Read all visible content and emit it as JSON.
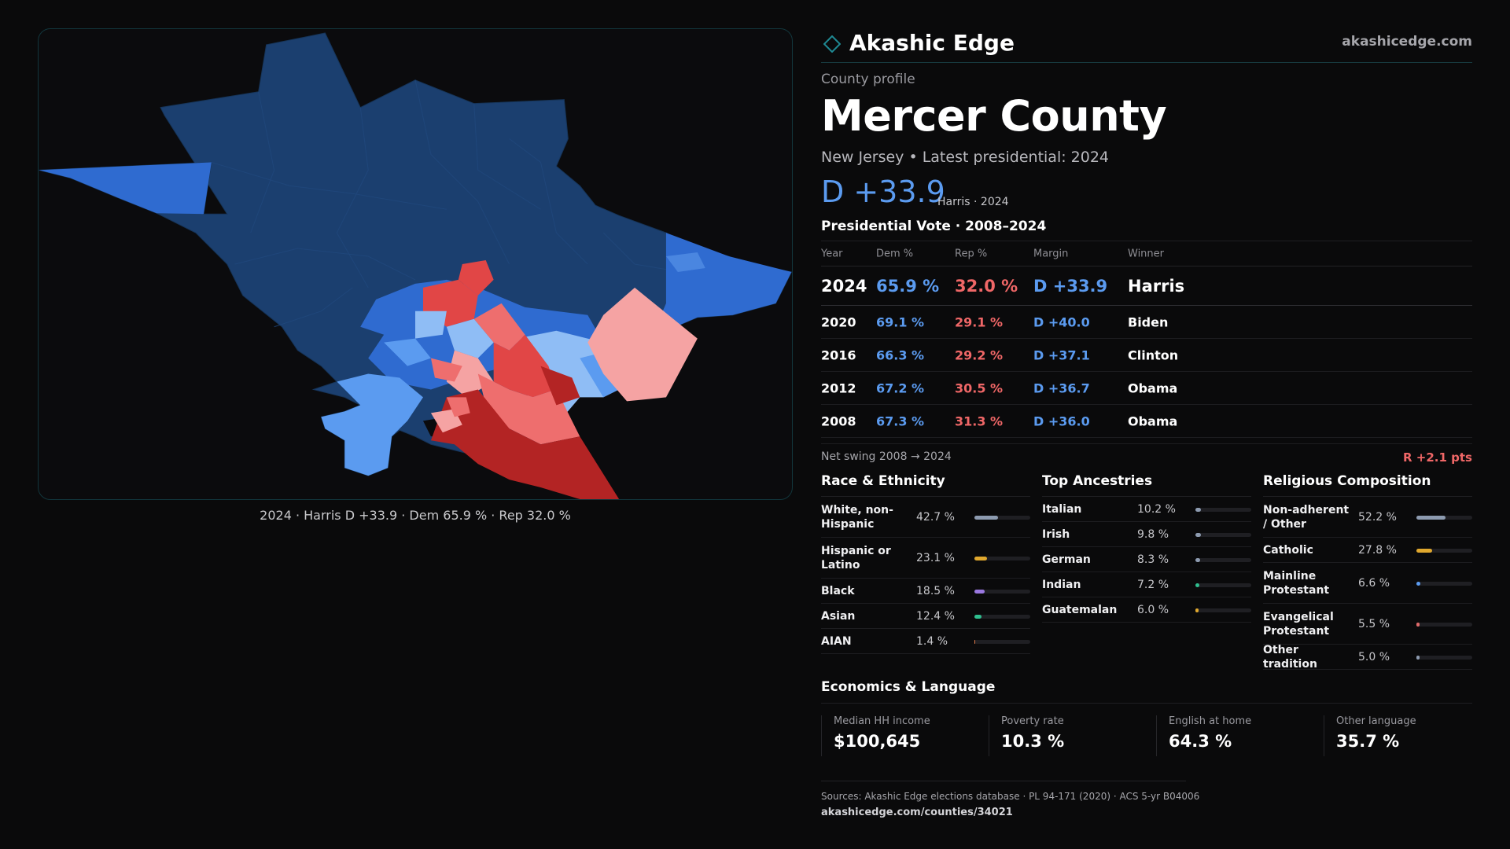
{
  "brand": {
    "name": "Akashic Edge",
    "url": "akashicedge.com",
    "accent": "#1f8a94"
  },
  "profile": {
    "eyebrow": "County profile",
    "county": "Mercer County",
    "subtitle": "New Jersey • Latest presidential: 2024",
    "headline_margin": "D +33.9",
    "headline_note": "Harris · 2024"
  },
  "map": {
    "caption": "2024 · Harris D +33.9 · Dem 65.9 % · Rep 32.0 %",
    "colors": {
      "solid_d": "#1b3f6f",
      "likely_d": "#2f6bd0",
      "lean_d": "#5b9bf0",
      "tilt_d": "#8fbdf5",
      "tilt_r": "#f5a3a3",
      "lean_r": "#ee6e6e",
      "likely_r": "#e14646",
      "solid_r": "#b32424"
    }
  },
  "vote_table": {
    "title": "Presidential Vote · 2008–2024",
    "headers": {
      "year": "Year",
      "dem": "Dem %",
      "rep": "Rep %",
      "margin": "Margin",
      "winner": "Winner"
    },
    "rows": [
      {
        "year": "2024",
        "dem": "65.9 %",
        "rep": "32.0 %",
        "margin": "D +33.9",
        "winner": "Harris"
      },
      {
        "year": "2020",
        "dem": "69.1 %",
        "rep": "29.1 %",
        "margin": "D +40.0",
        "winner": "Biden"
      },
      {
        "year": "2016",
        "dem": "66.3 %",
        "rep": "29.2 %",
        "margin": "D +37.1",
        "winner": "Clinton"
      },
      {
        "year": "2012",
        "dem": "67.2 %",
        "rep": "30.5 %",
        "margin": "D +36.7",
        "winner": "Obama"
      },
      {
        "year": "2008",
        "dem": "67.3 %",
        "rep": "31.3 %",
        "margin": "D +36.0",
        "winner": "Obama"
      }
    ]
  },
  "swing": {
    "label": "Net swing 2008 → 2024",
    "value": "R +2.1 pts"
  },
  "race": {
    "title": "Race & Ethnicity",
    "items": [
      {
        "label": "White, non-Hispanic",
        "pct": "42.7 %",
        "value": 42.7,
        "color": "#8d9bb0"
      },
      {
        "label": "Hispanic or Latino",
        "pct": "23.1 %",
        "value": 23.1,
        "color": "#e0a82e"
      },
      {
        "label": "Black",
        "pct": "18.5 %",
        "value": 18.5,
        "color": "#9a78e0"
      },
      {
        "label": "Asian",
        "pct": "12.4 %",
        "value": 12.4,
        "color": "#2fbf8f"
      },
      {
        "label": "AIAN",
        "pct": "1.4 %",
        "value": 1.4,
        "color": "#e07a4a"
      }
    ]
  },
  "ancestry": {
    "title": "Top Ancestries",
    "items": [
      {
        "label": "Italian",
        "pct": "10.2 %",
        "value": 10.2,
        "color": "#8d9bb0"
      },
      {
        "label": "Irish",
        "pct": "9.8 %",
        "value": 9.8,
        "color": "#8d9bb0"
      },
      {
        "label": "German",
        "pct": "8.3 %",
        "value": 8.3,
        "color": "#8d9bb0"
      },
      {
        "label": "Indian",
        "pct": "7.2 %",
        "value": 7.2,
        "color": "#2fbf8f"
      },
      {
        "label": "Guatemalan",
        "pct": "6.0 %",
        "value": 6.0,
        "color": "#e0a82e"
      }
    ]
  },
  "religion": {
    "title": "Religious Composition",
    "items": [
      {
        "label": "Non-adherent / Other",
        "pct": "52.2 %",
        "value": 52.2,
        "color": "#8d9bb0"
      },
      {
        "label": "Catholic",
        "pct": "27.8 %",
        "value": 27.8,
        "color": "#e0a82e"
      },
      {
        "label": "Mainline Protestant",
        "pct": "6.6 %",
        "value": 6.6,
        "color": "#5b9bf0"
      },
      {
        "label": "Evangelical Protestant",
        "pct": "5.5 %",
        "value": 5.5,
        "color": "#e06a6a"
      },
      {
        "label": "Other tradition",
        "pct": "5.0 %",
        "value": 5.0,
        "color": "#8d9bb0"
      }
    ]
  },
  "economics": {
    "title": "Economics & Language",
    "items": [
      {
        "label": "Median HH income",
        "value": "$100,645"
      },
      {
        "label": "Poverty rate",
        "value": "10.3 %"
      },
      {
        "label": "English at home",
        "value": "64.3 %"
      },
      {
        "label": "Other language",
        "value": "35.7 %"
      }
    ]
  },
  "sources": {
    "text": "Sources: Akashic Edge elections database · PL 94-171 (2020) · ACS 5-yr B04006",
    "url": "akashicedge.com/counties/34021"
  }
}
